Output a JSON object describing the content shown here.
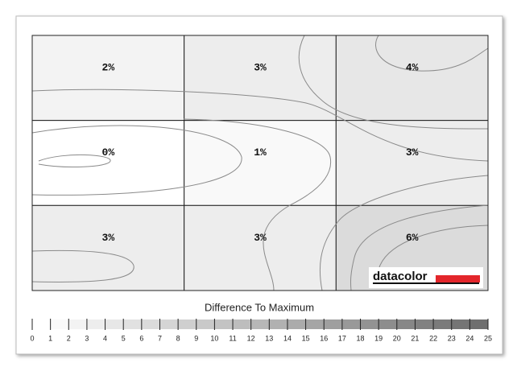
{
  "chart_data": {
    "type": "heatmap",
    "values": [
      [
        2,
        3,
        4
      ],
      [
        0,
        1,
        3
      ],
      [
        3,
        3,
        6
      ]
    ],
    "value_labels": [
      [
        "2%",
        "3%",
        "4%"
      ],
      [
        "0%",
        "1%",
        "3%"
      ],
      [
        "3%",
        "3%",
        "6%"
      ]
    ],
    "colorbar": {
      "title": "Difference To Maximum",
      "clim": [
        0,
        25
      ],
      "ticks": [
        0,
        1,
        2,
        3,
        4,
        5,
        6,
        7,
        8,
        9,
        10,
        11,
        12,
        13,
        14,
        15,
        16,
        17,
        18,
        19,
        20,
        21,
        22,
        23,
        24,
        25
      ]
    },
    "logo": "datacolor"
  }
}
